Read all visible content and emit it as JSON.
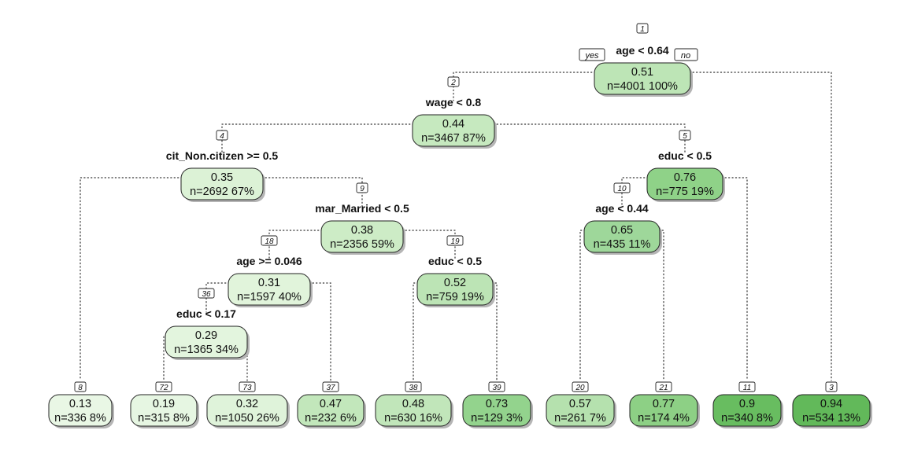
{
  "branch_labels": {
    "yes": "yes",
    "no": "no"
  },
  "nodes": [
    {
      "id": "1",
      "value": "0.51",
      "n_text": "n=4001  100%",
      "split": "age < 0.64",
      "color": "#bde5b6"
    },
    {
      "id": "2",
      "value": "0.44",
      "n_text": "n=3467  87%",
      "split": "wage < 0.8",
      "color": "#c6e9bf"
    },
    {
      "id": "4",
      "value": "0.35",
      "n_text": "n=2692  67%",
      "split": "cit_Non.citizen >= 0.5",
      "color": "#dcf2d6"
    },
    {
      "id": "9",
      "value": "0.38",
      "n_text": "n=2356  59%",
      "split": "mar_Married < 0.5",
      "color": "#cdecc6"
    },
    {
      "id": "18",
      "value": "0.31",
      "n_text": "n=1597  40%",
      "split": "age >= 0.046",
      "color": "#e1f4db"
    },
    {
      "id": "36",
      "value": "0.29",
      "n_text": "n=1365  34%",
      "split": "educ < 0.17",
      "color": "#e3f5de"
    },
    {
      "id": "19",
      "value": "0.52",
      "n_text": "n=759  19%",
      "split": "educ < 0.5",
      "color": "#bce4b5"
    },
    {
      "id": "5",
      "value": "0.76",
      "n_text": "n=775  19%",
      "split": "educ < 0.5",
      "color": "#8fd288"
    },
    {
      "id": "10",
      "value": "0.65",
      "n_text": "n=435  11%",
      "split": "age < 0.44",
      "color": "#9ed79a"
    },
    {
      "id": "8",
      "value": "0.13",
      "n_text": "n=336  8%",
      "split": "",
      "color": "#e9f7e5"
    },
    {
      "id": "72",
      "value": "0.19",
      "n_text": "n=315  8%",
      "split": "",
      "color": "#e6f6e2"
    },
    {
      "id": "73",
      "value": "0.32",
      "n_text": "n=1050  26%",
      "split": "",
      "color": "#dff3da"
    },
    {
      "id": "37",
      "value": "0.47",
      "n_text": "n=232  6%",
      "split": "",
      "color": "#c2e7bb"
    },
    {
      "id": "38",
      "value": "0.48",
      "n_text": "n=630  16%",
      "split": "",
      "color": "#c1e6ba"
    },
    {
      "id": "39",
      "value": "0.73",
      "n_text": "n=129  3%",
      "split": "",
      "color": "#93d38d"
    },
    {
      "id": "20",
      "value": "0.57",
      "n_text": "n=261  7%",
      "split": "",
      "color": "#b5e1ae"
    },
    {
      "id": "21",
      "value": "0.77",
      "n_text": "n=174  4%",
      "split": "",
      "color": "#8dd085"
    },
    {
      "id": "11",
      "value": "0.9",
      "n_text": "n=340  8%",
      "split": "",
      "color": "#68bd60"
    },
    {
      "id": "3",
      "value": "0.94",
      "n_text": "n=534  13%",
      "split": "",
      "color": "#62b95a"
    }
  ]
}
